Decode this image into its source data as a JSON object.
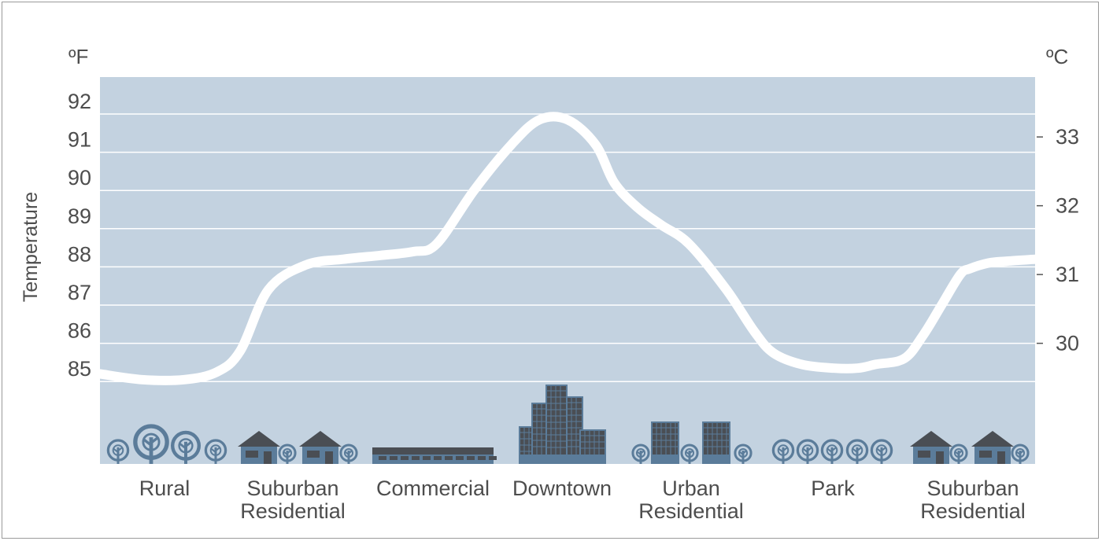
{
  "chart_data": {
    "type": "line",
    "title": "",
    "ylabel": "Temperature",
    "y_unit_left": "ºF",
    "y_unit_right": "ºC",
    "left_ticks": [
      "92",
      "91",
      "90",
      "89",
      "88",
      "87",
      "86",
      "85"
    ],
    "right_ticks": [
      "33",
      "32",
      "31",
      "30"
    ],
    "ylim_f": [
      84,
      93.5
    ],
    "grid": true,
    "categories": [
      {
        "line1": "Rural",
        "line2": ""
      },
      {
        "line1": "Suburban",
        "line2": "Residential"
      },
      {
        "line1": "Commercial",
        "line2": ""
      },
      {
        "line1": "Downtown",
        "line2": ""
      },
      {
        "line1": "Urban",
        "line2": "Residential"
      },
      {
        "line1": "Park",
        "line2": ""
      },
      {
        "line1": "Suburban",
        "line2": "Residential"
      }
    ],
    "series": [
      {
        "name": "",
        "x": [
          0.0,
          0.045,
          0.09,
          0.125,
          0.15,
          0.18,
          0.22,
          0.26,
          0.3,
          0.335,
          0.36,
          0.4,
          0.44,
          0.47,
          0.5,
          0.53,
          0.55,
          0.575,
          0.6,
          0.63,
          0.67,
          0.7,
          0.72,
          0.75,
          0.785,
          0.81,
          0.83,
          0.86,
          0.88,
          0.9,
          0.92,
          0.93,
          0.95,
          0.97,
          1.0
        ],
        "y": [
          85.2,
          85.05,
          85.05,
          85.25,
          85.8,
          87.4,
          88.05,
          88.2,
          88.3,
          88.4,
          88.6,
          90.0,
          91.2,
          91.85,
          91.85,
          91.2,
          90.2,
          89.55,
          89.1,
          88.6,
          87.4,
          86.3,
          85.75,
          85.45,
          85.35,
          85.35,
          85.45,
          85.6,
          86.2,
          87.0,
          87.8,
          87.95,
          88.1,
          88.15,
          88.2
        ]
      }
    ],
    "colors": {
      "plot_bg": "#c3d2e0",
      "grid": "#ffffff",
      "line": "#ffffff",
      "icon_tree": "#5b7c9a",
      "icon_building": "#4a4e54",
      "icon_building_base": "#5b7c9a",
      "label": "#4d4d4d"
    },
    "category_icons": [
      "tree-icons",
      "house-icons",
      "warehouse-icon",
      "skyscraper-icons",
      "apartment-icons",
      "tree-icons",
      "house-icons"
    ]
  }
}
